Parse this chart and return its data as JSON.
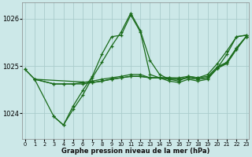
{
  "xlabel": "Graphe pression niveau de la mer (hPa)",
  "bg_color": "#cce8e8",
  "grid_color": "#aacccc",
  "line_color": "#1a6b1a",
  "marker_color": "#1a6b1a",
  "y_ticks": [
    1024,
    1025,
    1026
  ],
  "ylim": [
    1023.45,
    1026.35
  ],
  "xlim": [
    -0.3,
    23.3
  ],
  "series": [
    {
      "x": [
        0,
        1,
        3,
        4,
        5,
        6,
        7,
        8,
        9,
        10,
        11,
        12,
        13,
        14,
        15,
        16,
        17,
        18,
        19,
        20,
        21,
        22,
        23
      ],
      "y": [
        1024.93,
        1024.72,
        1023.93,
        1023.75,
        1024.08,
        1024.38,
        1024.75,
        1025.08,
        1025.42,
        1025.72,
        1026.12,
        1025.75,
        1025.12,
        1024.82,
        1024.72,
        1024.68,
        1024.78,
        1024.75,
        1024.82,
        1025.05,
        1025.32,
        1025.62,
        1025.65
      ]
    },
    {
      "x": [
        1,
        3,
        4,
        5,
        6,
        7,
        8,
        9,
        10,
        11,
        12,
        13,
        14,
        15,
        16,
        17,
        18,
        19,
        20,
        21,
        22,
        23
      ],
      "y": [
        1024.72,
        1024.62,
        1024.62,
        1024.62,
        1024.62,
        1024.65,
        1024.68,
        1024.72,
        1024.75,
        1024.78,
        1024.78,
        1024.75,
        1024.75,
        1024.75,
        1024.75,
        1024.78,
        1024.75,
        1024.78,
        1024.98,
        1025.08,
        1025.38,
        1025.62
      ]
    },
    {
      "x": [
        1,
        3,
        4,
        5,
        6,
        7,
        8,
        9,
        10,
        11,
        12,
        13,
        14,
        15,
        16,
        17,
        18,
        19,
        20,
        21,
        22,
        23
      ],
      "y": [
        1024.72,
        1024.62,
        1024.62,
        1024.62,
        1024.65,
        1024.68,
        1024.72,
        1024.75,
        1024.78,
        1024.82,
        1024.82,
        1024.75,
        1024.75,
        1024.72,
        1024.72,
        1024.75,
        1024.72,
        1024.75,
        1024.95,
        1025.05,
        1025.35,
        1025.62
      ]
    },
    {
      "x": [
        0,
        1,
        7,
        8,
        9,
        10,
        11,
        12,
        13,
        14,
        15,
        16,
        17,
        18,
        19,
        20,
        21,
        22,
        23
      ],
      "y": [
        1024.93,
        1024.72,
        1024.65,
        1024.68,
        1024.72,
        1024.75,
        1024.78,
        1024.78,
        1024.75,
        1024.75,
        1024.75,
        1024.72,
        1024.75,
        1024.72,
        1024.75,
        1024.95,
        1025.08,
        1025.38,
        1025.62
      ]
    },
    {
      "x": [
        3,
        4,
        5,
        6,
        7,
        8,
        9,
        10,
        11,
        12,
        13,
        14,
        15,
        16,
        17,
        18,
        19,
        20,
        21,
        22,
        23
      ],
      "y": [
        1023.93,
        1023.75,
        1024.15,
        1024.48,
        1024.78,
        1025.25,
        1025.62,
        1025.65,
        1026.08,
        1025.72,
        1024.82,
        1024.75,
        1024.68,
        1024.65,
        1024.72,
        1024.68,
        1024.72,
        1024.95,
        1025.25,
        1025.62,
        1025.65
      ]
    }
  ]
}
